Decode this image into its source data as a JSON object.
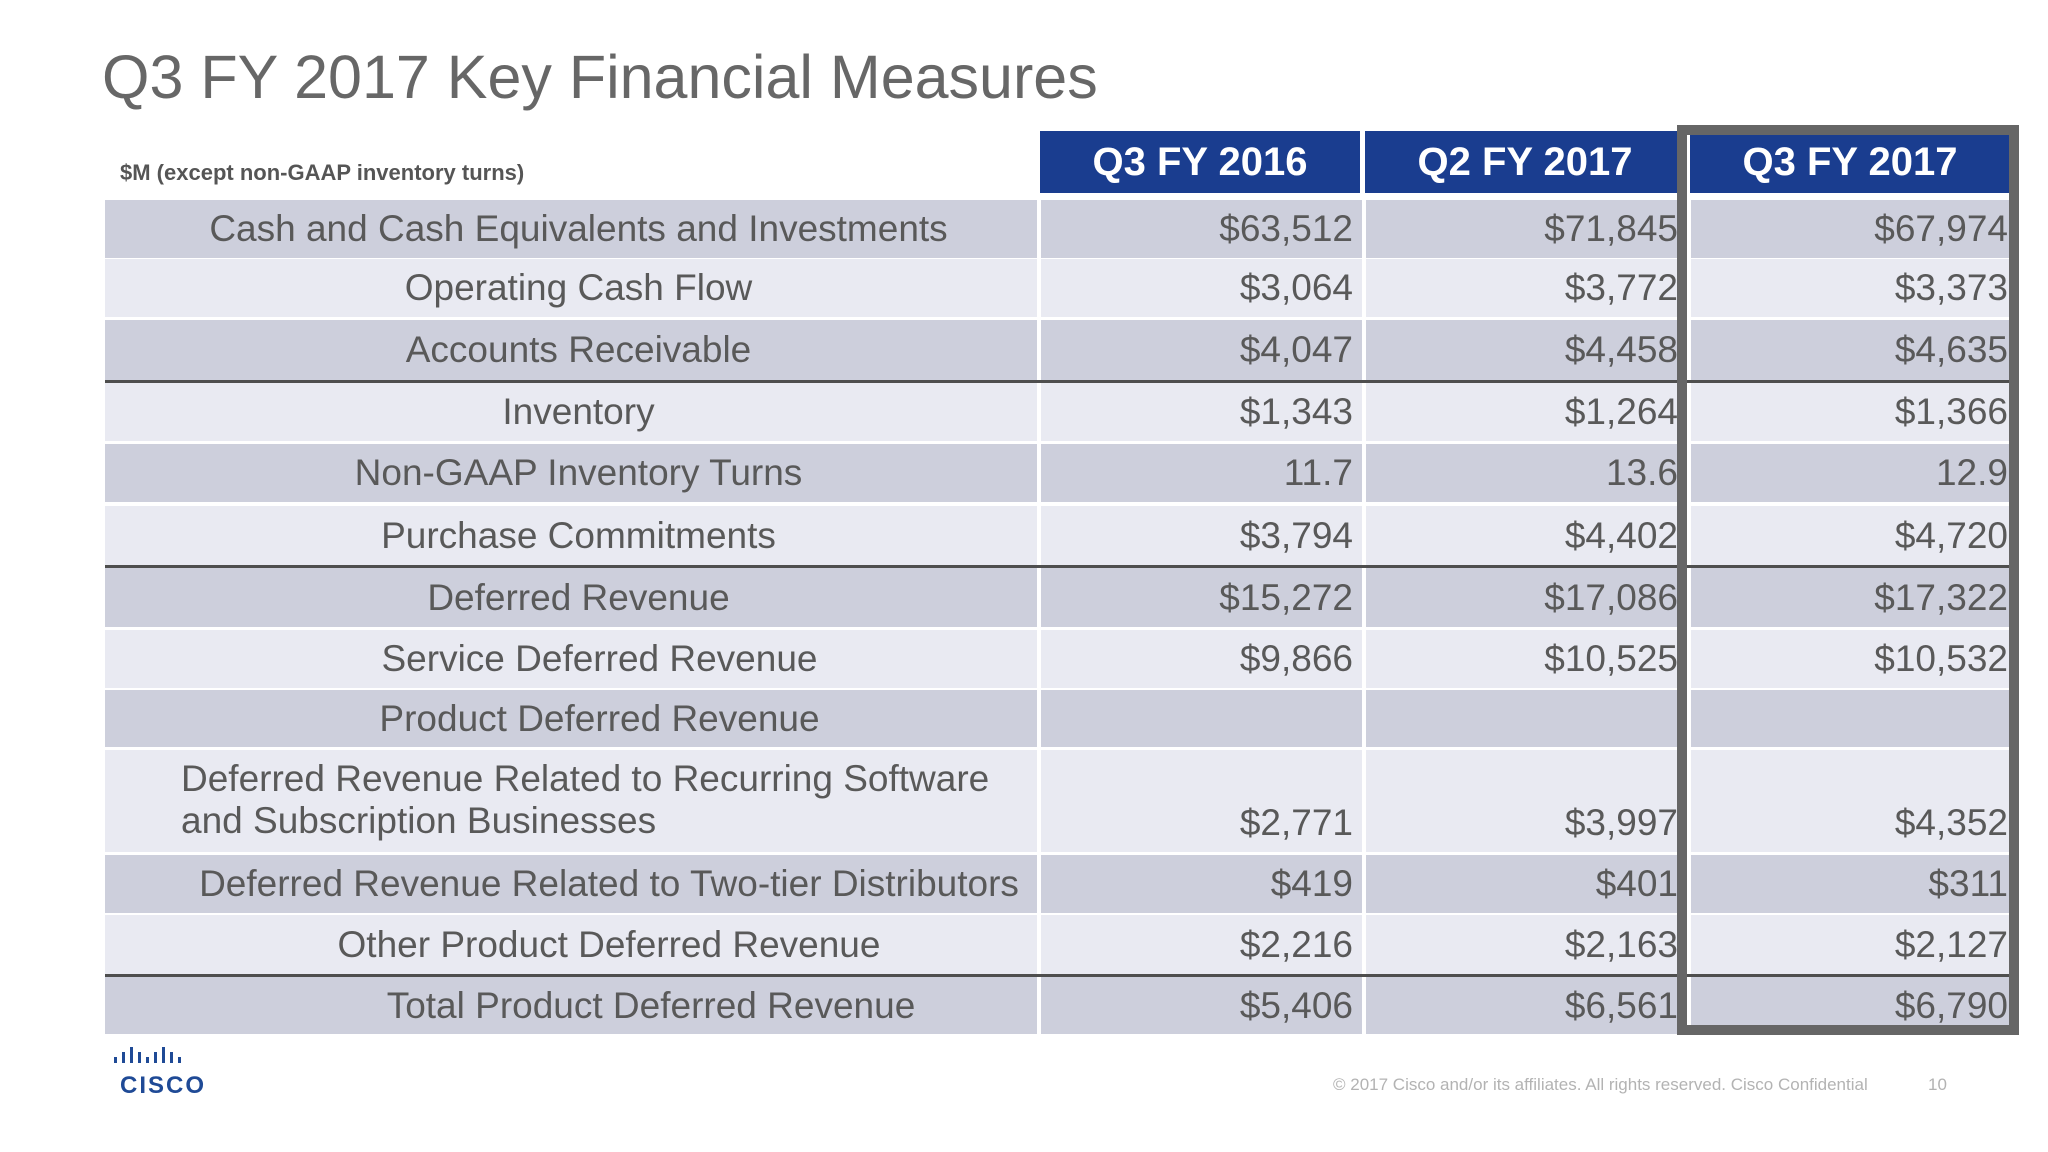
{
  "title": "Q3 FY 2017 Key Financial Measures",
  "units_note": "$M (except non-GAAP inventory turns)",
  "columns": [
    "Q3 FY 2016",
    "Q2 FY 2017",
    "Q3 FY 2017"
  ],
  "rows": [
    {
      "label": "Cash and Cash Equivalents and Investments",
      "values": [
        "$63,512",
        "$71,845",
        "$67,974"
      ]
    },
    {
      "label": "Operating Cash Flow",
      "values": [
        "$3,064",
        "$3,772",
        "$3,373"
      ]
    },
    {
      "label": "Accounts Receivable",
      "values": [
        "$4,047",
        "$4,458",
        "$4,635"
      ]
    },
    {
      "label": "Inventory",
      "values": [
        "$1,343",
        "$1,264",
        "$1,366"
      ]
    },
    {
      "label": "Non-GAAP Inventory Turns",
      "values": [
        "11.7",
        "13.6",
        "12.9"
      ]
    },
    {
      "label": "Purchase Commitments",
      "values": [
        "$3,794",
        "$4,402",
        "$4,720"
      ]
    },
    {
      "label": "Deferred Revenue",
      "values": [
        "$15,272",
        "$17,086",
        "$17,322"
      ]
    },
    {
      "label": "Service Deferred Revenue",
      "values": [
        "$9,866",
        "$10,525",
        "$10,532"
      ]
    },
    {
      "label": "Product Deferred Revenue",
      "values": [
        "",
        "",
        ""
      ]
    },
    {
      "label": "Deferred Revenue Related to Recurring Software",
      "label_line2": "and Subscription Businesses",
      "values": [
        "$2,771",
        "$3,997",
        "$4,352"
      ]
    },
    {
      "label": "Deferred Revenue Related to Two-tier Distributors",
      "values": [
        "$419",
        "$401",
        "$311"
      ]
    },
    {
      "label": "Other Product Deferred Revenue",
      "values": [
        "$2,216",
        "$2,163",
        "$2,127"
      ]
    },
    {
      "label": "Total Product Deferred Revenue",
      "values": [
        "$5,406",
        "$6,561",
        "$6,790"
      ]
    }
  ],
  "logo_text": "CISCO",
  "footer": "© 2017  Cisco and/or its affiliates. All rights reserved.   Cisco Confidential",
  "page_number": "10",
  "colors": {
    "header_bg": "#1a3d8f",
    "row_dark": "#cdcfdc",
    "row_light": "#e9eaf2",
    "highlight_border": "#666666"
  }
}
